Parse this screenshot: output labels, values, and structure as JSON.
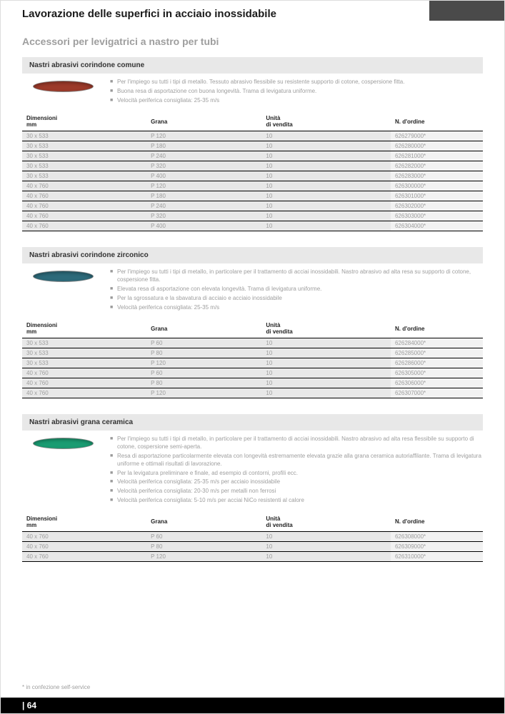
{
  "page_title": "Lavorazione delle superfici in acciaio inossidabile",
  "subtitle": "Accessori per levigatrici a nastro per tubi",
  "table_headers": {
    "dim": "Dimensioni",
    "dim_sub": "mm",
    "grana": "Grana",
    "unit": "Unità",
    "unit_sub": "di vendita",
    "ord": "N. d'ordine"
  },
  "sections": [
    {
      "name": "corindone-comune",
      "title": "Nastri abrasivi corindone comune",
      "belt_color": "#9c3a2a",
      "bullets": [
        "Per l'impiego su tutti i tipi di metallo. Tessuto abrasivo flessibile su resistente supporto di cotone, cospersione fitta.",
        "Buona resa di asportazione con buona longevità. Trama di levigatura uniforme.",
        "Velocità periferica consigliata: 25-35 m/s"
      ],
      "rows": [
        {
          "dim": "30 x 533",
          "grana": "P 120",
          "unit": "10",
          "ord": "626279000*"
        },
        {
          "dim": "30 x 533",
          "grana": "P 180",
          "unit": "10",
          "ord": "626280000*"
        },
        {
          "dim": "30 x 533",
          "grana": "P 240",
          "unit": "10",
          "ord": "626281000*"
        },
        {
          "dim": "30 x 533",
          "grana": "P 320",
          "unit": "10",
          "ord": "626282000*"
        },
        {
          "dim": "30 x 533",
          "grana": "P 400",
          "unit": "10",
          "ord": "626283000*"
        },
        {
          "dim": "40 x 760",
          "grana": "P 120",
          "unit": "10",
          "ord": "626300000*"
        },
        {
          "dim": "40 x 760",
          "grana": "P 180",
          "unit": "10",
          "ord": "626301000*"
        },
        {
          "dim": "40 x 760",
          "grana": "P 240",
          "unit": "10",
          "ord": "626302000*"
        },
        {
          "dim": "40 x 760",
          "grana": "P 320",
          "unit": "10",
          "ord": "626303000*"
        },
        {
          "dim": "40 x 760",
          "grana": "P 400",
          "unit": "10",
          "ord": "626304000*"
        }
      ]
    },
    {
      "name": "corindone-zirconico",
      "title": "Nastri abrasivi corindone zirconico",
      "belt_color": "#2d6a7a",
      "bullets": [
        "Per l'impiego su tutti i tipi di metallo, in particolare per il trattamento di acciai inossidabili. Nastro abrasivo ad alta resa su supporto di cotone, cospersione fitta.",
        "Elevata resa di asportazione con elevata longevità. Trama di levigatura uniforme.",
        "Per la sgrossatura e la sbavatura di acciaio e acciaio inossidabile",
        "Velocità periferica consigliata: 25-35 m/s"
      ],
      "rows": [
        {
          "dim": "30 x 533",
          "grana": "P 60",
          "unit": "10",
          "ord": "626284000*"
        },
        {
          "dim": "30 x 533",
          "grana": "P 80",
          "unit": "10",
          "ord": "626285000*"
        },
        {
          "dim": "30 x 533",
          "grana": "P 120",
          "unit": "10",
          "ord": "626286000*"
        },
        {
          "dim": "40 x 760",
          "grana": "P 60",
          "unit": "10",
          "ord": "626305000*"
        },
        {
          "dim": "40 x 760",
          "grana": "P 80",
          "unit": "10",
          "ord": "626306000*"
        },
        {
          "dim": "40 x 760",
          "grana": "P 120",
          "unit": "10",
          "ord": "626307000*"
        }
      ]
    },
    {
      "name": "grana-ceramica",
      "title": "Nastri abrasivi grana ceramica",
      "belt_color": "#1a9c72",
      "bullets": [
        "Per l'impiego su tutti i tipi di metallo, in particolare per il trattamento di acciai inossidabili. Nastro abrasivo ad alta resa flessibile su supporto di cotone, cospersione semi-aperta.",
        "Resa di asportazione particolarmente elevata con longevità estremamente elevata grazie alla grana ceramica autoriaffilante. Trama di levigatura uniforme e ottimali risultati di lavorazione.",
        "Per la levigatura preliminare e finale, ad esempio di contorni, profili ecc.",
        "Velocità periferica consigliata: 25-35 m/s per acciaio inossidabile",
        "Velocità periferica consigliata: 20-30 m/s per metalli non ferrosi",
        "Velocità periferica consigliata: 5-10 m/s per acciai NiCo resistenti al calore"
      ],
      "rows": [
        {
          "dim": "40 x 760",
          "grana": "P 60",
          "unit": "10",
          "ord": "626308000*"
        },
        {
          "dim": "40 x 760",
          "grana": "P 80",
          "unit": "10",
          "ord": "626309000*"
        },
        {
          "dim": "40 x 760",
          "grana": "P 120",
          "unit": "10",
          "ord": "626310000*"
        }
      ]
    }
  ],
  "footnote": "* in confezione self-service",
  "page_number": "| 64"
}
